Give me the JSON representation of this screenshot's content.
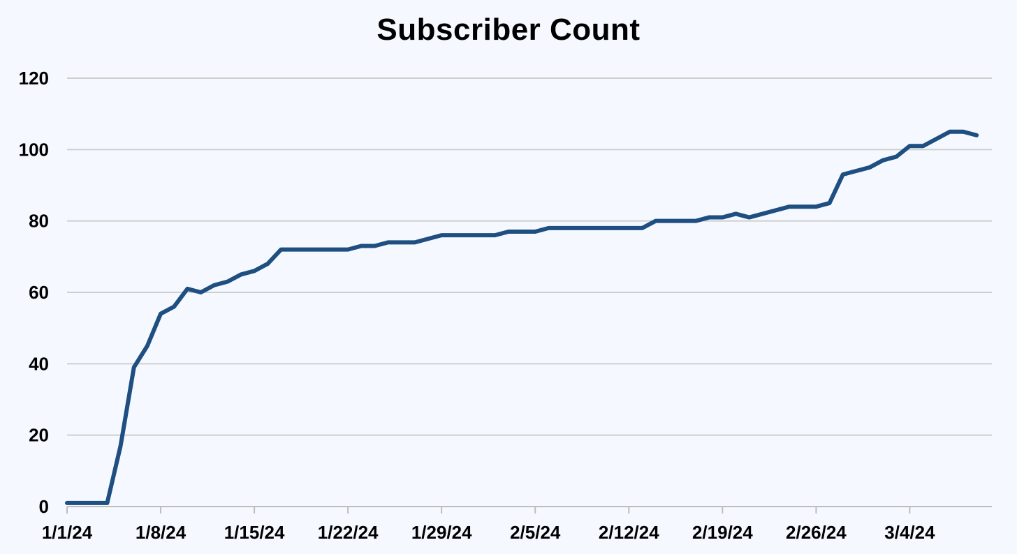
{
  "chart_data": {
    "type": "line",
    "title": "Subscriber Count",
    "xlabel": "",
    "ylabel": "",
    "ylim": [
      0,
      120
    ],
    "yticks": [
      0,
      20,
      40,
      60,
      80,
      100,
      120
    ],
    "xtick_labels": [
      "1/1/24",
      "1/8/24",
      "1/15/24",
      "1/22/24",
      "1/29/24",
      "2/5/24",
      "2/12/24",
      "2/19/24",
      "2/26/24",
      "3/4/24"
    ],
    "x_start": "1/1/24",
    "x_end": "3/10/24",
    "grid": true,
    "legend": "none",
    "series": [
      {
        "color": "#1f4e80",
        "points": [
          [
            "1/1/24",
            1
          ],
          [
            "1/2/24",
            1
          ],
          [
            "1/3/24",
            1
          ],
          [
            "1/4/24",
            1
          ],
          [
            "1/5/24",
            17
          ],
          [
            "1/6/24",
            39
          ],
          [
            "1/7/24",
            45
          ],
          [
            "1/8/24",
            54
          ],
          [
            "1/9/24",
            56
          ],
          [
            "1/10/24",
            61
          ],
          [
            "1/11/24",
            60
          ],
          [
            "1/12/24",
            62
          ],
          [
            "1/13/24",
            63
          ],
          [
            "1/14/24",
            65
          ],
          [
            "1/15/24",
            66
          ],
          [
            "1/16/24",
            68
          ],
          [
            "1/17/24",
            72
          ],
          [
            "1/18/24",
            72
          ],
          [
            "1/19/24",
            72
          ],
          [
            "1/20/24",
            72
          ],
          [
            "1/21/24",
            72
          ],
          [
            "1/22/24",
            72
          ],
          [
            "1/23/24",
            73
          ],
          [
            "1/24/24",
            73
          ],
          [
            "1/25/24",
            74
          ],
          [
            "1/26/24",
            74
          ],
          [
            "1/27/24",
            74
          ],
          [
            "1/28/24",
            75
          ],
          [
            "1/29/24",
            76
          ],
          [
            "1/30/24",
            76
          ],
          [
            "1/31/24",
            76
          ],
          [
            "2/1/24",
            76
          ],
          [
            "2/2/24",
            76
          ],
          [
            "2/3/24",
            77
          ],
          [
            "2/4/24",
            77
          ],
          [
            "2/5/24",
            77
          ],
          [
            "2/6/24",
            78
          ],
          [
            "2/7/24",
            78
          ],
          [
            "2/8/24",
            78
          ],
          [
            "2/9/24",
            78
          ],
          [
            "2/10/24",
            78
          ],
          [
            "2/11/24",
            78
          ],
          [
            "2/12/24",
            78
          ],
          [
            "2/13/24",
            78
          ],
          [
            "2/14/24",
            80
          ],
          [
            "2/15/24",
            80
          ],
          [
            "2/16/24",
            80
          ],
          [
            "2/17/24",
            80
          ],
          [
            "2/18/24",
            81
          ],
          [
            "2/19/24",
            81
          ],
          [
            "2/20/24",
            82
          ],
          [
            "2/21/24",
            81
          ],
          [
            "2/22/24",
            82
          ],
          [
            "2/23/24",
            83
          ],
          [
            "2/24/24",
            84
          ],
          [
            "2/25/24",
            84
          ],
          [
            "2/26/24",
            84
          ],
          [
            "2/27/24",
            85
          ],
          [
            "2/28/24",
            93
          ],
          [
            "2/29/24",
            94
          ],
          [
            "3/1/24",
            95
          ],
          [
            "3/2/24",
            97
          ],
          [
            "3/3/24",
            98
          ],
          [
            "3/4/24",
            101
          ],
          [
            "3/5/24",
            101
          ],
          [
            "3/6/24",
            103
          ],
          [
            "3/7/24",
            105
          ],
          [
            "3/8/24",
            105
          ],
          [
            "3/9/24",
            104
          ]
        ]
      }
    ]
  }
}
